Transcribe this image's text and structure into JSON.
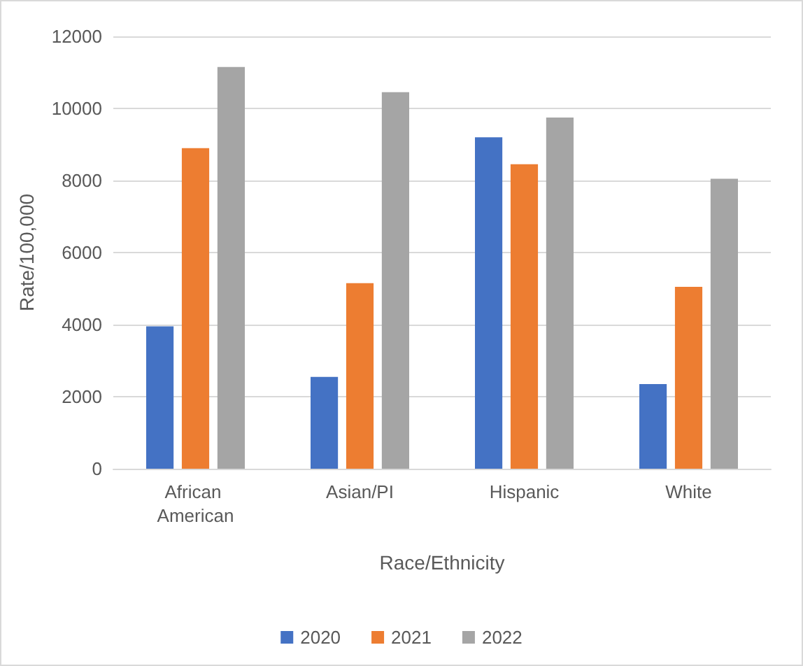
{
  "chart_data": {
    "type": "bar",
    "xlabel": "Race/Ethnicity",
    "ylabel": "Rate/100,000",
    "categories": [
      "African American",
      "Asian/PI",
      "Hispanic",
      "White"
    ],
    "series": [
      {
        "name": "2020",
        "color": "#4472c4",
        "values": [
          3950,
          2550,
          9200,
          2350
        ]
      },
      {
        "name": "2021",
        "color": "#ed7d31",
        "values": [
          8900,
          5150,
          8450,
          5050
        ]
      },
      {
        "name": "2022",
        "color": "#a5a5a5",
        "values": [
          11150,
          10450,
          9750,
          8050
        ]
      }
    ],
    "ylim": [
      0,
      12000
    ],
    "yticks": [
      0,
      2000,
      4000,
      6000,
      8000,
      10000,
      12000
    ],
    "grid": "y",
    "legend": "bottom"
  }
}
